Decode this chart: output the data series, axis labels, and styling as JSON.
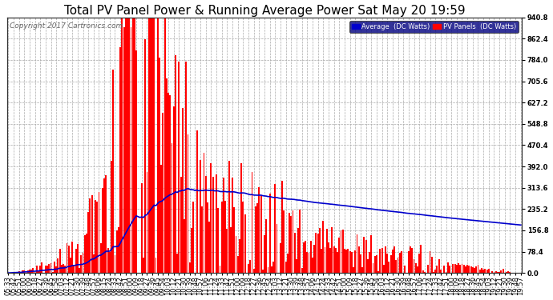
{
  "title": "Total PV Panel Power & Running Average Power Sat May 20 19:59",
  "copyright": "Copyright 2017 Cartronics.com",
  "legend_avg": "Average  (DC Watts)",
  "legend_pv": "PV Panels  (DC Watts)",
  "ylabel_right_ticks": [
    0.0,
    78.4,
    156.8,
    235.2,
    313.6,
    392.0,
    470.4,
    548.8,
    627.2,
    705.6,
    784.0,
    862.4,
    940.8
  ],
  "ymax": 940.8,
  "bg_color": "#ffffff",
  "grid_color": "#aaaaaa",
  "pv_color": "#ff0000",
  "avg_color": "#0000cc",
  "title_fontsize": 11,
  "tick_fontsize": 6,
  "copyright_fontsize": 6.5
}
